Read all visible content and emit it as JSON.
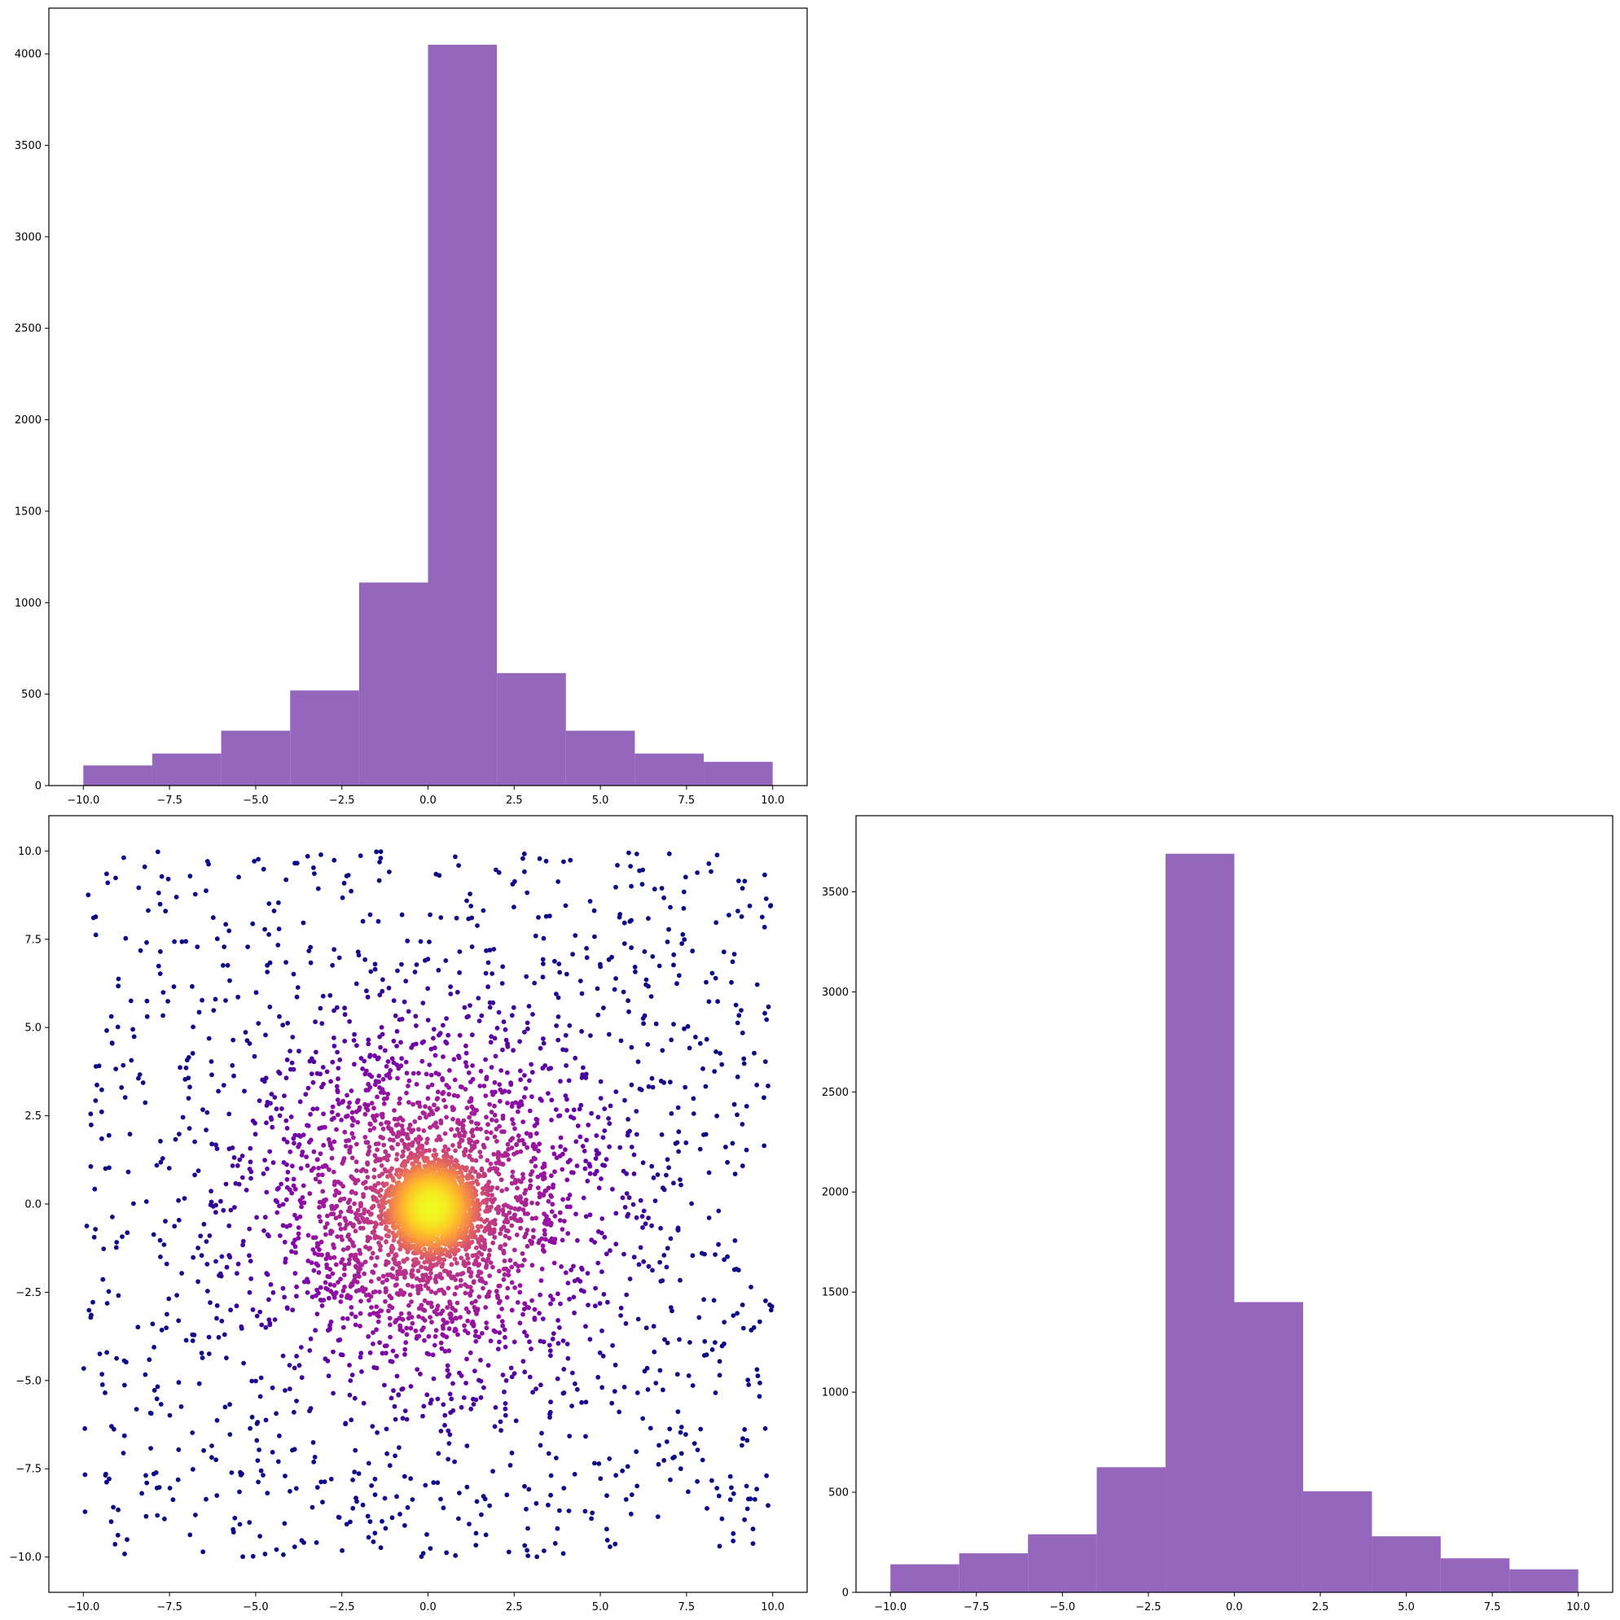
{
  "figure": {
    "layout": "2x2 corner plot (upper-right panel empty)"
  },
  "colors": {
    "hist_bar": "#9467bd",
    "scatter_colormap": "plasma",
    "axes": "#000000",
    "background": "#ffffff"
  },
  "chart_data": [
    {
      "id": "top-left-histogram",
      "type": "bar",
      "title": "",
      "xlabel": "",
      "ylabel": "",
      "bin_edges": [
        -10,
        -8,
        -6,
        -4,
        -2,
        0,
        2,
        4,
        6,
        8,
        10
      ],
      "values": [
        110,
        175,
        300,
        520,
        1110,
        4050,
        615,
        300,
        175,
        130
      ],
      "xlim": [
        -11,
        11
      ],
      "ylim": [
        0,
        4250
      ],
      "xticks": [
        -10.0,
        -7.5,
        -5.0,
        -2.5,
        0.0,
        2.5,
        5.0,
        7.5,
        10.0
      ],
      "xtick_labels": [
        "−10.0",
        "−7.5",
        "−5.0",
        "−2.5",
        "0.0",
        "2.5",
        "5.0",
        "7.5",
        "10.0"
      ],
      "yticks": [
        0,
        500,
        1000,
        1500,
        2000,
        2500,
        3000,
        3500,
        4000
      ],
      "ytick_labels": [
        "0",
        "500",
        "1000",
        "1500",
        "2000",
        "2500",
        "3000",
        "3500",
        "4000"
      ],
      "grid": false,
      "legend": "none"
    },
    {
      "id": "bottom-left-scatter",
      "type": "scatter",
      "title": "",
      "xlabel": "",
      "ylabel": "",
      "description": "density-colored scatter (plasma colormap), ~6000 points",
      "xlim": [
        -11,
        11
      ],
      "ylim": [
        -11,
        11
      ],
      "xticks": [
        -10.0,
        -7.5,
        -5.0,
        -2.5,
        0.0,
        2.5,
        5.0,
        7.5,
        10.0
      ],
      "xtick_labels": [
        "−10.0",
        "−7.5",
        "−5.0",
        "−2.5",
        "0.0",
        "2.5",
        "5.0",
        "7.5",
        "10.0"
      ],
      "yticks": [
        -10.0,
        -7.5,
        -5.0,
        -2.5,
        0.0,
        2.5,
        5.0,
        7.5,
        10.0
      ],
      "ytick_labels": [
        "−10.0",
        "−7.5",
        "−5.0",
        "−2.5",
        "0.0",
        "2.5",
        "5.0",
        "7.5",
        "10.0"
      ],
      "distribution": {
        "n_points": 6000,
        "center": [
          0.1,
          -0.1
        ],
        "core_fraction": 0.45,
        "core_sigma": 0.55,
        "mid_fraction": 0.33,
        "mid_sigma": 2.4,
        "uniform_range": [
          -10,
          10
        ]
      },
      "grid": false,
      "legend": "none"
    },
    {
      "id": "bottom-right-histogram",
      "type": "bar",
      "title": "",
      "xlabel": "",
      "ylabel": "",
      "bin_edges": [
        -10,
        -8,
        -6,
        -4,
        -2,
        0,
        2,
        4,
        6,
        8,
        10
      ],
      "values": [
        140,
        195,
        290,
        625,
        3690,
        1450,
        505,
        280,
        170,
        115
      ],
      "xlim": [
        -11,
        11
      ],
      "ylim": [
        0,
        3880
      ],
      "xticks": [
        -10.0,
        -7.5,
        -5.0,
        -2.5,
        0.0,
        2.5,
        5.0,
        7.5,
        10.0
      ],
      "xtick_labels": [
        "−10.0",
        "−7.5",
        "−5.0",
        "−2.5",
        "0.0",
        "2.5",
        "5.0",
        "7.5",
        "10.0"
      ],
      "yticks": [
        0,
        500,
        1000,
        1500,
        2000,
        2500,
        3000,
        3500
      ],
      "ytick_labels": [
        "0",
        "500",
        "1000",
        "1500",
        "2000",
        "2500",
        "3000",
        "3500"
      ],
      "grid": false,
      "legend": "none"
    }
  ]
}
